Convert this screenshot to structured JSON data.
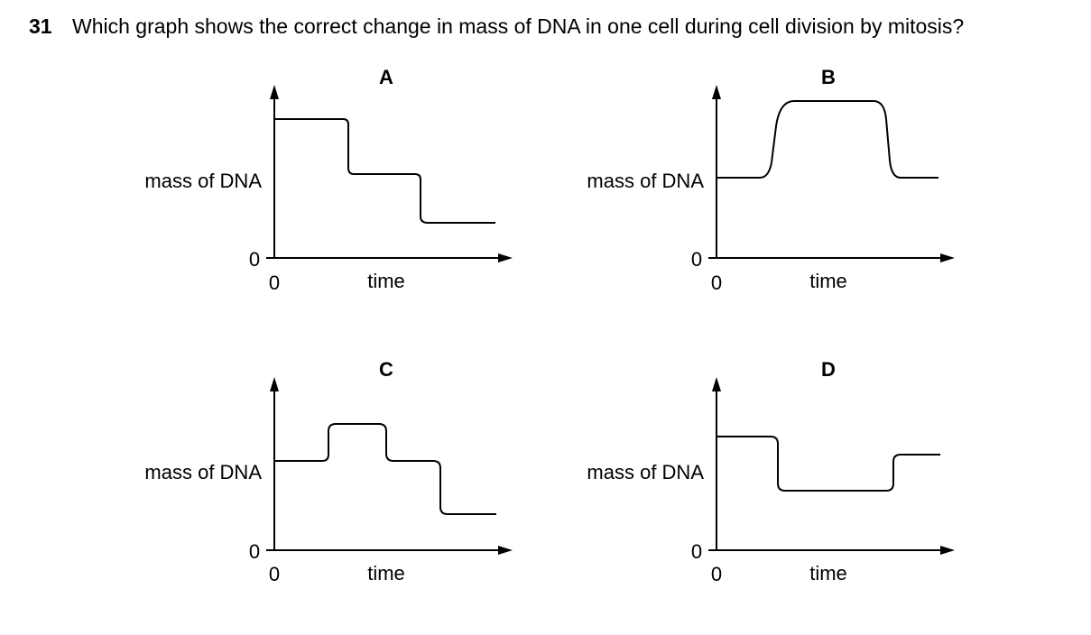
{
  "question": {
    "number": "31",
    "text": "Which graph shows the correct change in mass of DNA in one cell during cell division by mitosis?"
  },
  "graphs": [
    {
      "letter": "A",
      "ylabel": "mass of DNA",
      "xlabel": "time",
      "zero_y": "0",
      "zero_x": "0",
      "curve_levels": [
        "high",
        "medium",
        "low"
      ]
    },
    {
      "letter": "B",
      "ylabel": "mass of DNA",
      "xlabel": "time",
      "zero_y": "0",
      "zero_x": "0",
      "curve_levels": [
        "medium",
        "high",
        "medium"
      ]
    },
    {
      "letter": "C",
      "ylabel": "mass of DNA",
      "xlabel": "time",
      "zero_y": "0",
      "zero_x": "0",
      "curve_levels": [
        "medium",
        "high",
        "medium",
        "low"
      ]
    },
    {
      "letter": "D",
      "ylabel": "mass of DNA",
      "xlabel": "time",
      "zero_y": "0",
      "zero_x": "0",
      "curve_levels": [
        "high",
        "low",
        "medium"
      ]
    }
  ]
}
